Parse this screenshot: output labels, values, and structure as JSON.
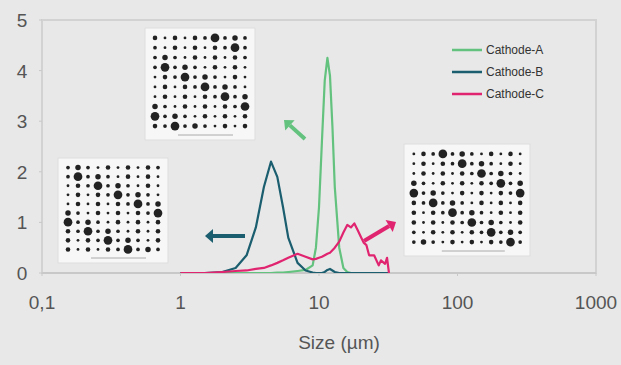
{
  "chart_data": {
    "type": "line",
    "x_label": "Size (µm)",
    "log": "x",
    "grid": false,
    "legend": "upper right",
    "xlim": [
      0.1,
      1000
    ],
    "xticks": [
      {
        "value": 0.1,
        "label": "0,1"
      },
      1,
      10,
      100,
      1000
    ],
    "ylim": [
      0,
      5
    ],
    "yticks": [
      0,
      1,
      2,
      3,
      4,
      5
    ],
    "x": [
      1,
      1.5,
      2,
      2.5,
      3,
      3.5,
      4,
      4.5,
      5,
      5.5,
      6,
      7,
      8,
      9,
      9.5,
      10,
      10.5,
      11,
      11.5,
      12,
      12.5,
      13,
      14,
      15,
      16,
      17,
      18,
      19,
      20,
      21,
      22,
      23,
      25,
      27,
      28,
      30,
      31,
      32
    ],
    "series": [
      {
        "name": "Cathode-A",
        "color": "#62c27e",
        "values": [
          0,
          0,
          0,
          0,
          0,
          0,
          0,
          0,
          0.01,
          0.01,
          0.02,
          0.04,
          0.06,
          0.15,
          0.5,
          1.3,
          2.6,
          3.8,
          4.25,
          3.9,
          2.9,
          1.7,
          0.5,
          0.1,
          0.02,
          0,
          0,
          0,
          0,
          0,
          0,
          0,
          0,
          0,
          0,
          0,
          0,
          0
        ]
      },
      {
        "name": "Cathode-B",
        "color": "#1b5e6f",
        "values": [
          0,
          0,
          0.02,
          0.1,
          0.35,
          0.9,
          1.7,
          2.2,
          1.9,
          1.3,
          0.7,
          0.2,
          0.05,
          0.01,
          0,
          0,
          0,
          0.02,
          0.06,
          0.08,
          0.05,
          0.02,
          0,
          0,
          0,
          0,
          0,
          0,
          0,
          0,
          0,
          0,
          0,
          0,
          0,
          0,
          0,
          0
        ]
      },
      {
        "name": "Cathode-C",
        "color": "#e0246f",
        "values": [
          0,
          0,
          0.02,
          0.04,
          0.05,
          0.08,
          0.1,
          0.15,
          0.2,
          0.25,
          0.3,
          0.38,
          0.32,
          0.27,
          0.28,
          0.3,
          0.32,
          0.35,
          0.38,
          0.4,
          0.45,
          0.5,
          0.62,
          0.8,
          0.95,
          0.9,
          0.98,
          0.85,
          0.72,
          0.6,
          0.55,
          0.35,
          0.35,
          0.15,
          0.25,
          0.18,
          0.3,
          0
        ]
      }
    ]
  }
}
